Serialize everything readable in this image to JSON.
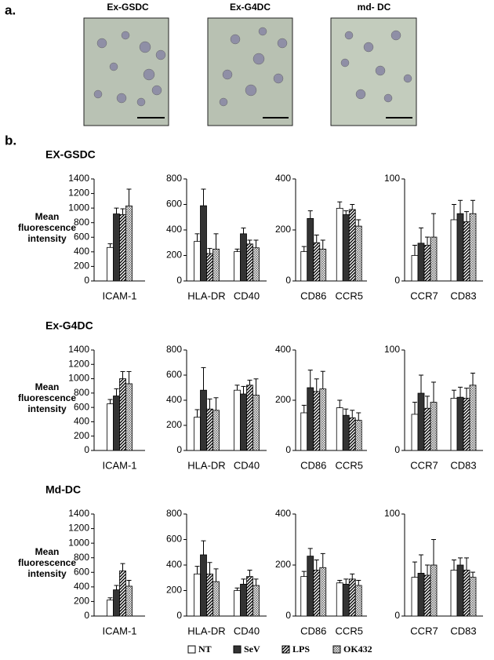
{
  "panel_a": {
    "label": "a.",
    "images": [
      "Ex-GSDC",
      "Ex-G4DC",
      "md- DC"
    ]
  },
  "panel_b_label": "b.",
  "legend": [
    {
      "name": "NT",
      "fill": "white"
    },
    {
      "name": "SeV",
      "fill": "black"
    },
    {
      "name": "LPS",
      "fill": "hatch"
    },
    {
      "name": "OK432",
      "fill": "crosshatch"
    }
  ],
  "chart_data": [
    {
      "type": "bar",
      "title": "EX-GSDC",
      "ylabel": "Mean fluorescence intensity",
      "categories": [
        "ICAM-1"
      ],
      "ylim": [
        0,
        1400
      ],
      "yticks": [
        0,
        200,
        400,
        600,
        800,
        1000,
        1200,
        1400
      ],
      "series": [
        {
          "values": [
            460
          ],
          "errors": [
            50
          ]
        },
        {
          "values": [
            920
          ],
          "errors": [
            80
          ]
        },
        {
          "values": [
            910
          ],
          "errors": [
            80
          ]
        },
        {
          "values": [
            1030
          ],
          "errors": [
            230
          ]
        }
      ]
    },
    {
      "type": "bar",
      "categories": [
        "HLA-DR",
        "CD40"
      ],
      "ylim": [
        0,
        800
      ],
      "yticks": [
        0,
        200,
        400,
        600,
        800
      ],
      "series": [
        {
          "values": [
            310,
            230
          ],
          "errors": [
            60,
            20
          ]
        },
        {
          "values": [
            590,
            370
          ],
          "errors": [
            130,
            45
          ]
        },
        {
          "values": [
            215,
            290
          ],
          "errors": [
            40,
            30
          ]
        },
        {
          "values": [
            250,
            260
          ],
          "errors": [
            120,
            60
          ]
        }
      ]
    },
    {
      "type": "bar",
      "categories": [
        "CD86",
        "CCR5"
      ],
      "ylim": [
        0,
        400
      ],
      "yticks": [
        0,
        200,
        400
      ],
      "series": [
        {
          "values": [
            115,
            285
          ],
          "errors": [
            20,
            25
          ]
        },
        {
          "values": [
            245,
            260
          ],
          "errors": [
            30,
            15
          ]
        },
        {
          "values": [
            150,
            280
          ],
          "errors": [
            30,
            20
          ]
        },
        {
          "values": [
            125,
            215
          ],
          "errors": [
            35,
            25
          ]
        }
      ]
    },
    {
      "type": "bar",
      "categories": [
        "CCR7",
        "CD83"
      ],
      "ylim": [
        0,
        100
      ],
      "yticks": [
        0,
        100
      ],
      "series": [
        {
          "values": [
            25,
            60
          ],
          "errors": [
            10,
            15
          ]
        },
        {
          "values": [
            37,
            66
          ],
          "errors": [
            15,
            13
          ]
        },
        {
          "values": [
            35,
            58
          ],
          "errors": [
            8,
            10
          ]
        },
        {
          "values": [
            43,
            66
          ],
          "errors": [
            23,
            13
          ]
        }
      ]
    },
    {
      "type": "bar",
      "title": "Ex-G4DC",
      "ylabel": "Mean fluorescence intensity",
      "categories": [
        "ICAM-1"
      ],
      "ylim": [
        0,
        1400
      ],
      "yticks": [
        0,
        200,
        400,
        600,
        800,
        1000,
        1200,
        1400
      ],
      "series": [
        {
          "values": [
            650
          ],
          "errors": [
            60
          ]
        },
        {
          "values": [
            760
          ],
          "errors": [
            100
          ]
        },
        {
          "values": [
            1000
          ],
          "errors": [
            100
          ]
        },
        {
          "values": [
            930
          ],
          "errors": [
            170
          ]
        }
      ]
    },
    {
      "type": "bar",
      "categories": [
        "HLA-DR",
        "CD40"
      ],
      "ylim": [
        0,
        800
      ],
      "yticks": [
        0,
        200,
        400,
        600,
        800
      ],
      "series": [
        {
          "values": [
            265,
            480
          ],
          "errors": [
            60,
            40
          ]
        },
        {
          "values": [
            480,
            450
          ],
          "errors": [
            180,
            60
          ]
        },
        {
          "values": [
            330,
            520
          ],
          "errors": [
            80,
            40
          ]
        },
        {
          "values": [
            320,
            440
          ],
          "errors": [
            100,
            130
          ]
        }
      ]
    },
    {
      "type": "bar",
      "categories": [
        "CD86",
        "CCR5"
      ],
      "ylim": [
        0,
        400
      ],
      "yticks": [
        0,
        200,
        400
      ],
      "series": [
        {
          "values": [
            150,
            170
          ],
          "errors": [
            30,
            30
          ]
        },
        {
          "values": [
            250,
            140
          ],
          "errors": [
            70,
            25
          ]
        },
        {
          "values": [
            235,
            130
          ],
          "errors": [
            50,
            30
          ]
        },
        {
          "values": [
            245,
            120
          ],
          "errors": [
            70,
            30
          ]
        }
      ]
    },
    {
      "type": "bar",
      "categories": [
        "CCR7",
        "CD83"
      ],
      "ylim": [
        0,
        100
      ],
      "yticks": [
        0,
        100
      ],
      "series": [
        {
          "values": [
            36,
            52
          ],
          "errors": [
            12,
            8
          ]
        },
        {
          "values": [
            57,
            53
          ],
          "errors": [
            18,
            10
          ]
        },
        {
          "values": [
            42,
            52
          ],
          "errors": [
            12,
            10
          ]
        },
        {
          "values": [
            48,
            65
          ],
          "errors": [
            20,
            12
          ]
        }
      ]
    },
    {
      "type": "bar",
      "title": "Md-DC",
      "ylabel": "Mean fluorescence intensity",
      "categories": [
        "ICAM-1"
      ],
      "ylim": [
        0,
        1400
      ],
      "yticks": [
        0,
        200,
        400,
        600,
        800,
        1000,
        1200,
        1400
      ],
      "series": [
        {
          "values": [
            220
          ],
          "errors": [
            30
          ]
        },
        {
          "values": [
            360
          ],
          "errors": [
            60
          ]
        },
        {
          "values": [
            620
          ],
          "errors": [
            100
          ]
        },
        {
          "values": [
            410
          ],
          "errors": [
            80
          ]
        }
      ]
    },
    {
      "type": "bar",
      "categories": [
        "HLA-DR",
        "CD40"
      ],
      "ylim": [
        0,
        800
      ],
      "yticks": [
        0,
        200,
        400,
        600,
        800
      ],
      "series": [
        {
          "values": [
            330,
            200
          ],
          "errors": [
            60,
            20
          ]
        },
        {
          "values": [
            480,
            250
          ],
          "errors": [
            110,
            40
          ]
        },
        {
          "values": [
            330,
            310
          ],
          "errors": [
            90,
            50
          ]
        },
        {
          "values": [
            270,
            240
          ],
          "errors": [
            100,
            50
          ]
        }
      ]
    },
    {
      "type": "bar",
      "categories": [
        "CD86",
        "CCR5"
      ],
      "ylim": [
        0,
        400
      ],
      "yticks": [
        0,
        200,
        400
      ],
      "series": [
        {
          "values": [
            155,
            130
          ],
          "errors": [
            20,
            10
          ]
        },
        {
          "values": [
            235,
            125
          ],
          "errors": [
            30,
            20
          ]
        },
        {
          "values": [
            180,
            145
          ],
          "errors": [
            40,
            20
          ]
        },
        {
          "values": [
            190,
            120
          ],
          "errors": [
            55,
            20
          ]
        }
      ]
    },
    {
      "type": "bar",
      "categories": [
        "CCR7",
        "CD83"
      ],
      "ylim": [
        0,
        100
      ],
      "yticks": [
        0,
        100
      ],
      "series": [
        {
          "values": [
            38,
            45
          ],
          "errors": [
            15,
            10
          ]
        },
        {
          "values": [
            42,
            50
          ],
          "errors": [
            18,
            7
          ]
        },
        {
          "values": [
            40,
            45
          ],
          "errors": [
            10,
            12
          ]
        },
        {
          "values": [
            50,
            38
          ],
          "errors": [
            25,
            5
          ]
        }
      ]
    }
  ]
}
